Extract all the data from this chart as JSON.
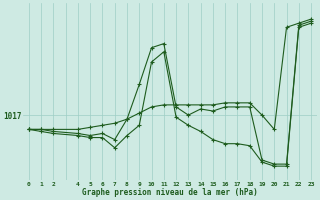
{
  "background_color": "#ceeae3",
  "plot_bg_color": "#ceeae3",
  "line_color": "#1e5c1e",
  "grid_color": "#9ecec5",
  "xlabel": "Graphe pression niveau de la mer (hPa)",
  "ylabel_tick": "1017",
  "xlim": [
    -0.5,
    23.5
  ],
  "ylim": [
    1013.8,
    1022.5
  ],
  "ytick_val": 1017.0,
  "series1_x": [
    0,
    1,
    2,
    4,
    5,
    6,
    7,
    8,
    9,
    10,
    11,
    12,
    13,
    14,
    15,
    16,
    17,
    18,
    19,
    20,
    21,
    22,
    23
  ],
  "series1_y": [
    1016.3,
    1016.3,
    1016.3,
    1016.3,
    1016.4,
    1016.5,
    1016.6,
    1016.8,
    1017.1,
    1017.4,
    1017.5,
    1017.5,
    1017.5,
    1017.5,
    1017.5,
    1017.6,
    1017.6,
    1017.6,
    1017.0,
    1016.3,
    1021.3,
    1021.5,
    1021.7
  ],
  "series2_x": [
    0,
    1,
    2,
    4,
    5,
    6,
    7,
    8,
    9,
    10,
    11,
    12,
    13,
    14,
    15,
    16,
    17,
    18,
    19,
    20,
    21,
    22,
    23
  ],
  "series2_y": [
    1016.3,
    1016.3,
    1016.2,
    1016.1,
    1016.0,
    1016.1,
    1015.8,
    1016.8,
    1018.5,
    1020.3,
    1020.5,
    1017.4,
    1017.0,
    1017.3,
    1017.2,
    1017.4,
    1017.4,
    1017.4,
    1014.8,
    1014.6,
    1014.6,
    1021.4,
    1021.6
  ],
  "series3_x": [
    0,
    1,
    2,
    4,
    5,
    6,
    7,
    8,
    9,
    10,
    11,
    12,
    13,
    14,
    15,
    16,
    17,
    18,
    19,
    20,
    21,
    22,
    23
  ],
  "series3_y": [
    1016.3,
    1016.2,
    1016.1,
    1016.0,
    1015.9,
    1015.9,
    1015.4,
    1016.0,
    1016.5,
    1019.6,
    1020.1,
    1016.9,
    1016.5,
    1016.2,
    1015.8,
    1015.6,
    1015.6,
    1015.5,
    1014.7,
    1014.5,
    1014.5,
    1021.3,
    1021.5
  ]
}
